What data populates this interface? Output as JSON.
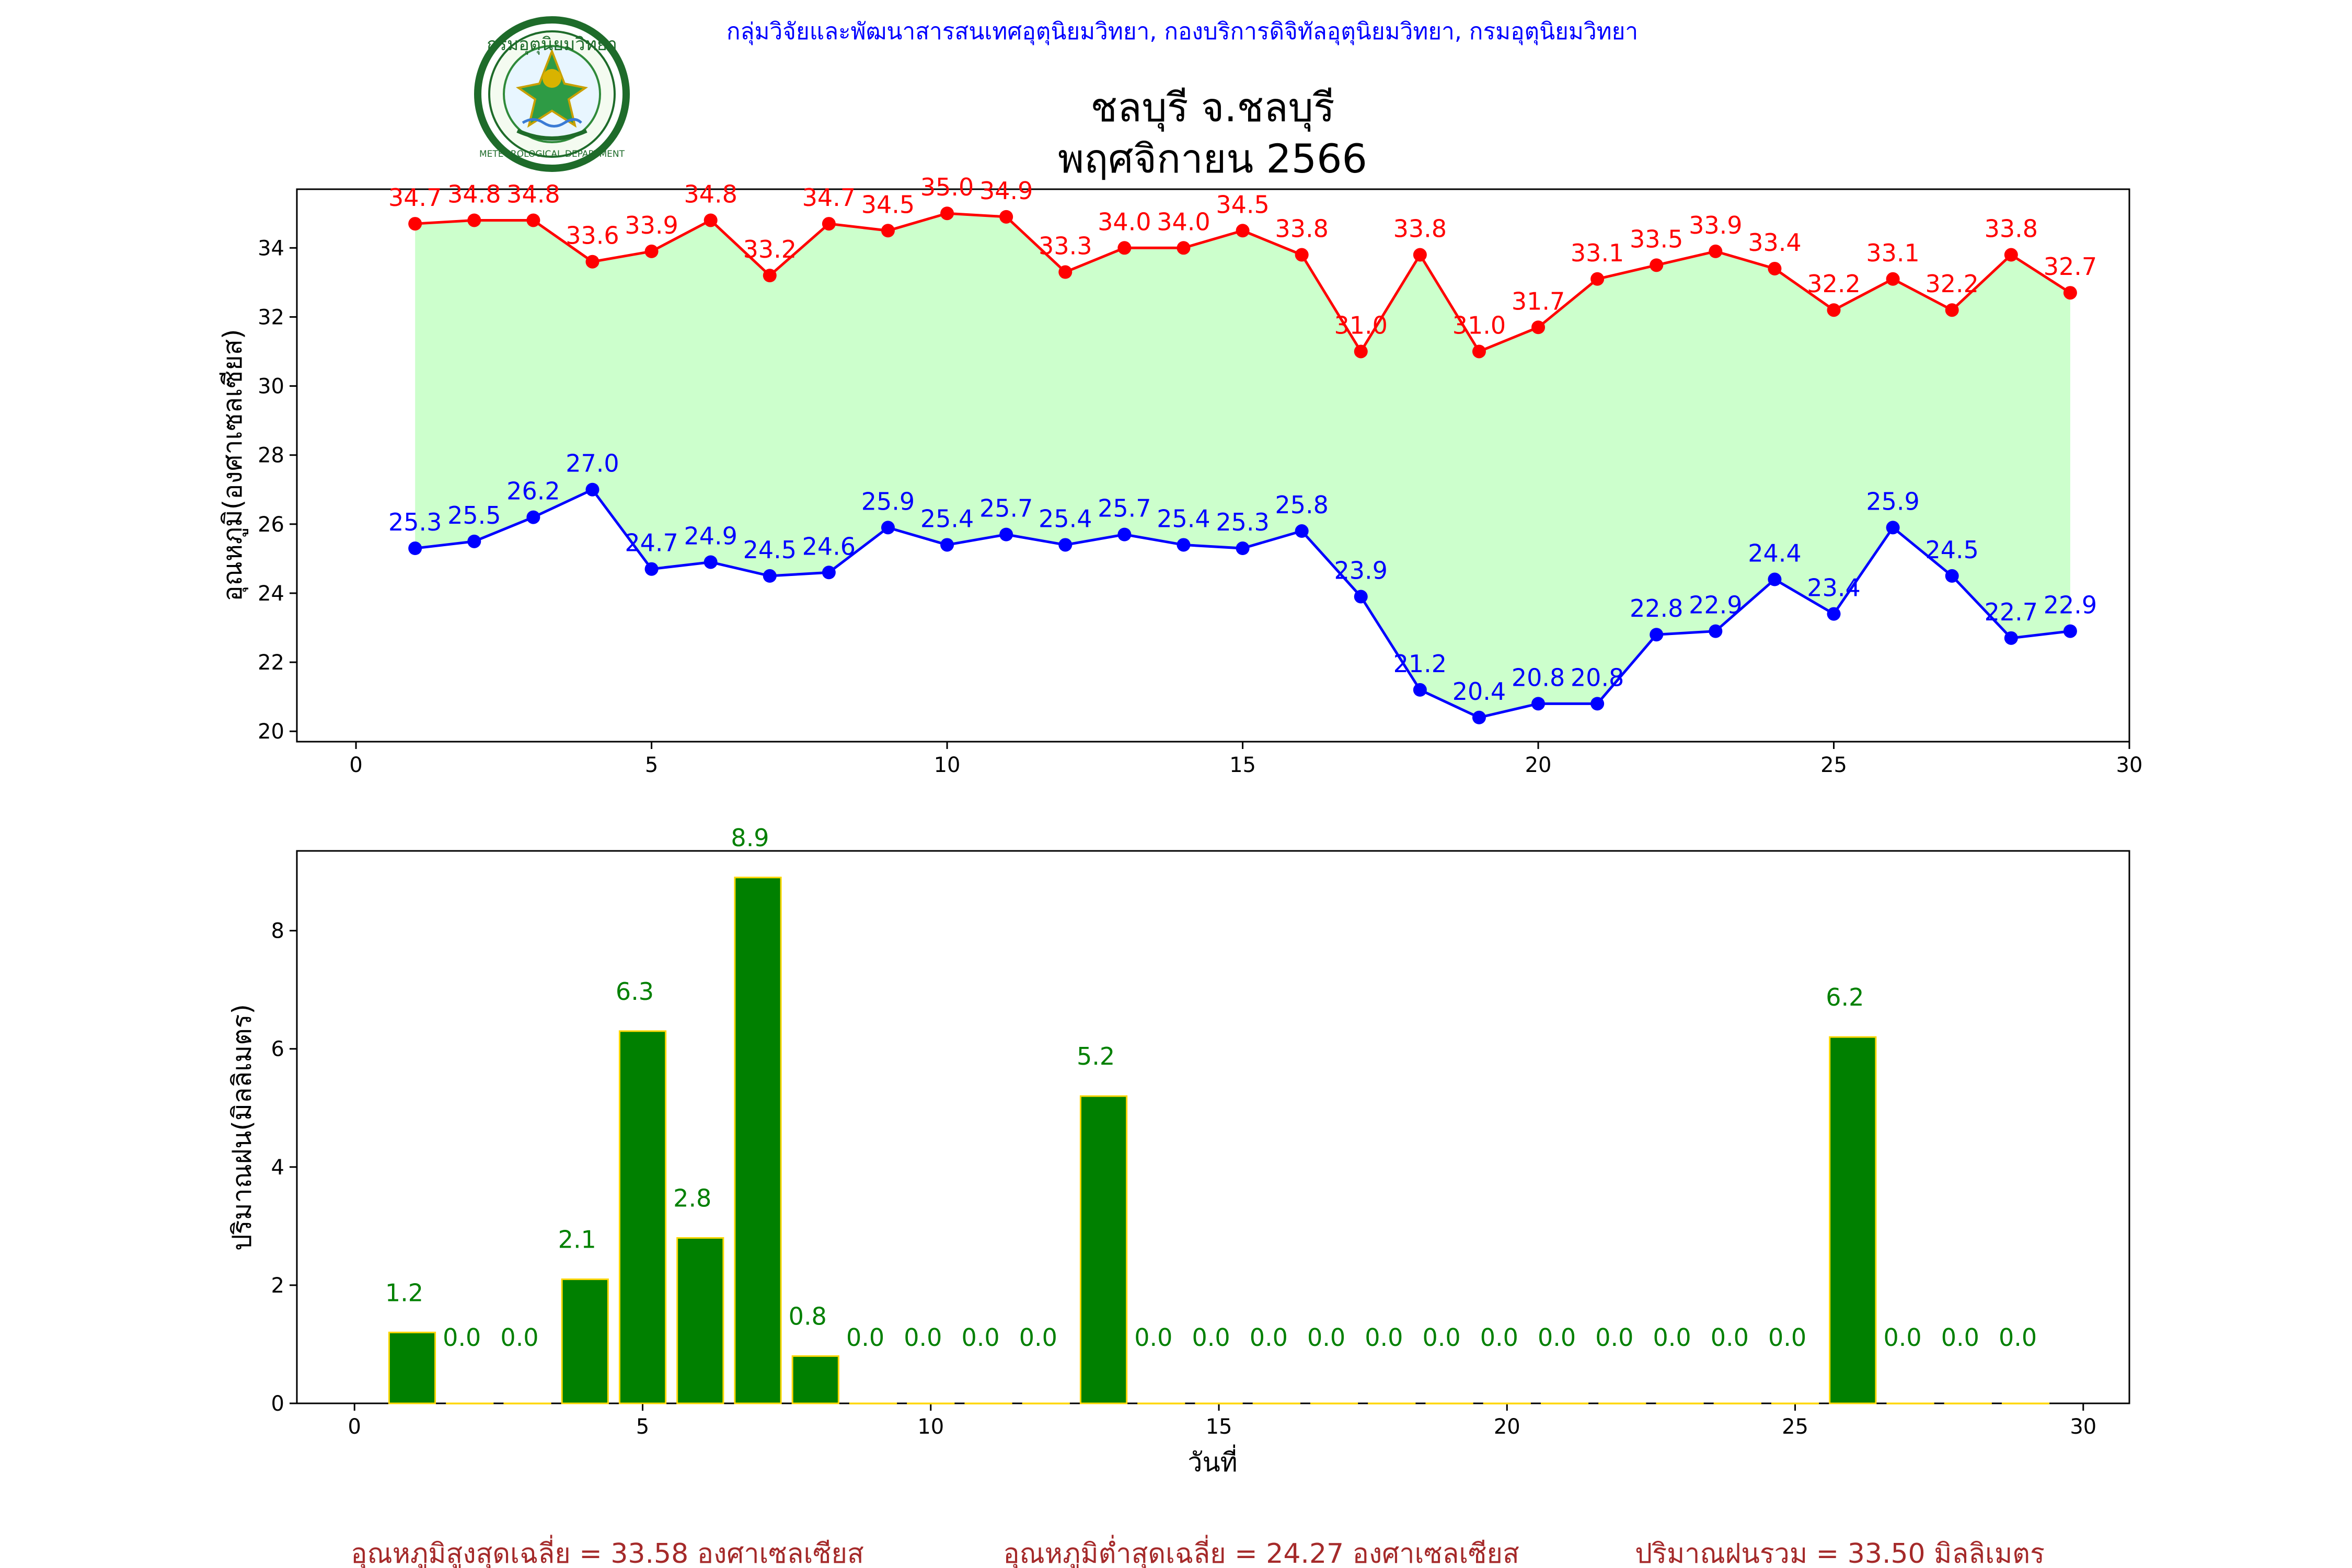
{
  "header": {
    "org_line": "กลุ่มวิจัยและพัฒนาสารสนเทศอุตุนิยมวิทยา, กองบริการดิจิทัลอุตุนิยมวิทยา, กรมอุตุนิยมวิทยา",
    "title_line1": "ชลบุรี จ.ชลบุรี",
    "title_line2": "พฤศจิกายน 2566",
    "logo_top_text": "กรมอุตุนิยมวิทยา",
    "logo_bottom_text": "METEOROLOGICAL DEPARTMENT"
  },
  "colors": {
    "max_line": "#ff0000",
    "min_line": "#0000ff",
    "fill": "#ccffcc",
    "bar": "#008000",
    "bar_edge": "#ffd700",
    "bar_label": "#008000",
    "header_text": "#0000ff",
    "footer_text": "#a52a2a"
  },
  "chart_data": [
    {
      "type": "line",
      "ylabel": "อุณหภูมิ(องศาเซลเซียส)",
      "xlim": [
        -1,
        30
      ],
      "ylim": [
        19.7,
        35.7
      ],
      "xticks": [
        0,
        5,
        10,
        15,
        20,
        25,
        30
      ],
      "yticks": [
        20,
        22,
        24,
        26,
        28,
        30,
        32,
        34
      ],
      "x": [
        1,
        2,
        3,
        4,
        5,
        6,
        7,
        8,
        9,
        10,
        11,
        12,
        13,
        14,
        15,
        16,
        17,
        18,
        19,
        20,
        21,
        22,
        23,
        24,
        25,
        26,
        27,
        28,
        29
      ],
      "series": [
        {
          "key": "max",
          "values": [
            34.7,
            34.8,
            34.8,
            33.6,
            33.9,
            34.8,
            33.2,
            34.7,
            34.5,
            35.0,
            34.9,
            33.3,
            34.0,
            34.0,
            34.5,
            33.8,
            31.0,
            33.8,
            31.0,
            31.7,
            33.1,
            33.5,
            33.9,
            33.4,
            32.2,
            33.1,
            32.2,
            33.8,
            32.7
          ]
        },
        {
          "key": "min",
          "values": [
            25.3,
            25.5,
            26.2,
            27.0,
            24.7,
            24.9,
            24.5,
            24.6,
            25.9,
            25.4,
            25.7,
            25.4,
            25.7,
            25.4,
            25.3,
            25.8,
            23.9,
            21.2,
            20.4,
            20.8,
            20.8,
            22.8,
            22.9,
            24.4,
            23.4,
            25.9,
            24.5,
            22.7,
            22.9
          ]
        }
      ]
    },
    {
      "type": "bar",
      "xlabel": "วันที่",
      "ylabel": "ปริมาณฝน(มิลลิเมตร)",
      "xlim": [
        -1,
        30.8
      ],
      "ylim": [
        0,
        9.35
      ],
      "xticks": [
        0,
        5,
        10,
        15,
        20,
        25,
        30
      ],
      "yticks": [
        0,
        2,
        4,
        6,
        8
      ],
      "x": [
        1,
        2,
        3,
        4,
        5,
        6,
        7,
        8,
        9,
        10,
        11,
        12,
        13,
        14,
        15,
        16,
        17,
        18,
        19,
        20,
        21,
        22,
        23,
        24,
        25,
        26,
        27,
        28,
        29
      ],
      "values": [
        1.2,
        0.0,
        0.0,
        2.1,
        6.3,
        2.8,
        8.9,
        0.8,
        0.0,
        0.0,
        0.0,
        0.0,
        5.2,
        0.0,
        0.0,
        0.0,
        0.0,
        0.0,
        0.0,
        0.0,
        0.0,
        0.0,
        0.0,
        0.0,
        0.0,
        6.2,
        0.0,
        0.0,
        0.0
      ]
    }
  ],
  "footer": {
    "avg_max": "อุณหภูมิสูงสุดเฉลี่ย = 33.58 องศาเซลเซียส",
    "avg_min": "อุณหภูมิต่ำสุดเฉลี่ย = 24.27 องศาเซลเซียส",
    "rain_total": "ปริมาณฝนรวม = 33.50 มิลลิเมตร"
  }
}
